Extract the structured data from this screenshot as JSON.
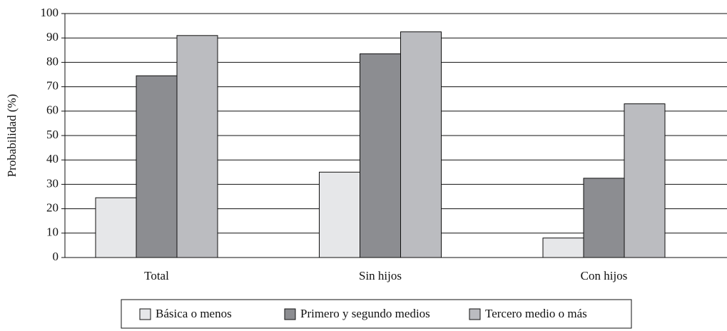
{
  "chart_data": {
    "type": "bar",
    "y_label": "Probabilidad (%)",
    "categories": [
      "Total",
      "Sin hijos",
      "Con hijos"
    ],
    "series": [
      {
        "name": "Básica o menos",
        "color": "#e6e7e9",
        "values": [
          24.5,
          35,
          8
        ]
      },
      {
        "name": "Primero y segundo medios",
        "color": "#8c8d91",
        "values": [
          74.5,
          83.5,
          32.5
        ]
      },
      {
        "name": "Tercero medio o más",
        "color": "#bbbcc0",
        "values": [
          91,
          92.5,
          63
        ]
      }
    ],
    "ylim": [
      0,
      100
    ],
    "yticks": [
      0,
      10,
      20,
      30,
      40,
      50,
      60,
      70,
      80,
      90,
      100
    ],
    "grid": true
  }
}
